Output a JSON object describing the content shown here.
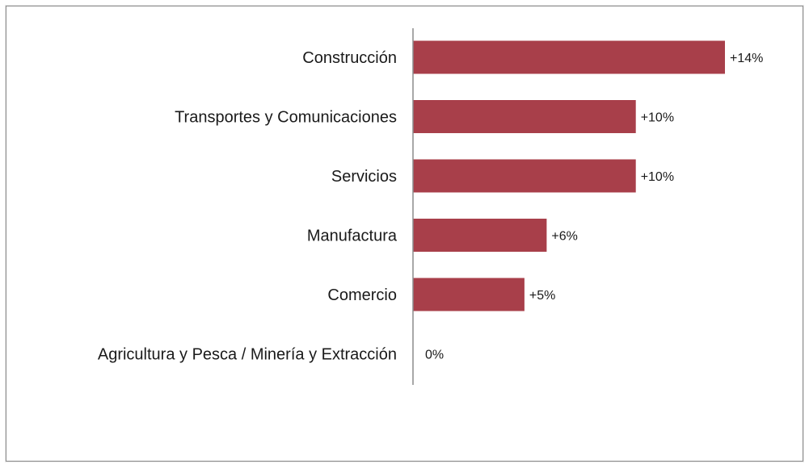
{
  "chart_data": {
    "type": "bar",
    "orientation": "horizontal",
    "categories": [
      "Construcción",
      "Transportes y Comunicaciones",
      "Servicios",
      "Manufactura",
      "Comercio",
      "Agricultura y Pesca / Minería y Extracción"
    ],
    "values": [
      14,
      10,
      10,
      6,
      5,
      0
    ],
    "data_labels": [
      "+14%",
      "+10%",
      "+10%",
      "+6%",
      "+5%",
      "0%"
    ],
    "xlim": [
      0,
      14
    ],
    "unit": "%",
    "grid": false,
    "legend": "none",
    "colors": {
      "bar": "#a83f4a",
      "axis": "#8c8c8c",
      "frame": "#8a8a8a"
    }
  }
}
